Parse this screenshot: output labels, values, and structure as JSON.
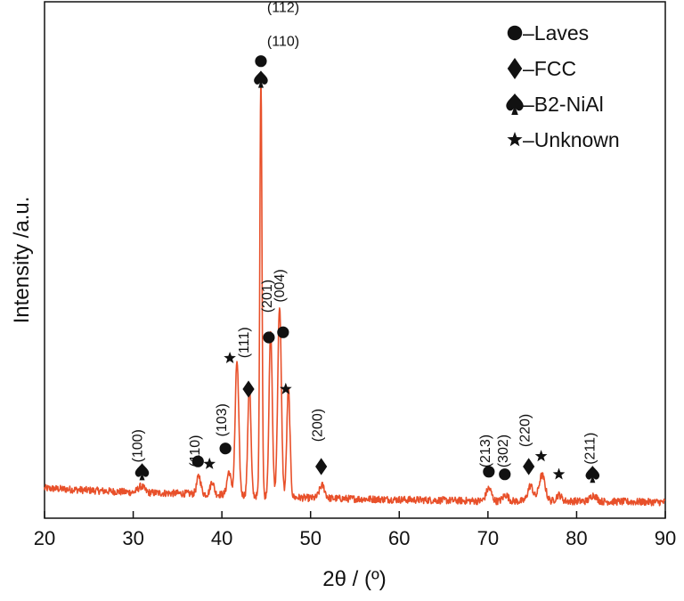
{
  "chart_data": {
    "type": "line",
    "xlabel": "2θ / (º)",
    "ylabel": "Intensity /a.u.",
    "xlim": [
      20,
      90
    ],
    "ylim": [
      0,
      100
    ],
    "xticks": [
      "20",
      "30",
      "40",
      "50",
      "60",
      "70",
      "80",
      "90"
    ],
    "line_color": "#E8502A",
    "background": [
      [
        20,
        5.8
      ],
      [
        30,
        5.0
      ],
      [
        40,
        4.6
      ],
      [
        50,
        3.9
      ],
      [
        60,
        3.6
      ],
      [
        70,
        3.3
      ],
      [
        80,
        3.3
      ],
      [
        90,
        3.1
      ]
    ],
    "peaks": [
      {
        "x": 30.9,
        "y": 1.2,
        "w": 0.35
      },
      {
        "x": 37.4,
        "y": 3.5,
        "w": 0.22
      },
      {
        "x": 38.9,
        "y": 2.5,
        "w": 0.2
      },
      {
        "x": 40.8,
        "y": 4.5,
        "w": 0.22
      },
      {
        "x": 41.7,
        "y": 26.0,
        "w": 0.2
      },
      {
        "x": 43.1,
        "y": 22.0,
        "w": 0.17
      },
      {
        "x": 44.4,
        "y": 82.0,
        "w": 0.12
      },
      {
        "x": 45.5,
        "y": 32.0,
        "w": 0.18
      },
      {
        "x": 46.5,
        "y": 37.0,
        "w": 0.2
      },
      {
        "x": 47.5,
        "y": 21.0,
        "w": 0.18
      },
      {
        "x": 51.3,
        "y": 2.5,
        "w": 0.3
      },
      {
        "x": 70.1,
        "y": 2.5,
        "w": 0.3
      },
      {
        "x": 72.0,
        "y": 1.2,
        "w": 0.3
      },
      {
        "x": 74.8,
        "y": 3.0,
        "w": 0.3
      },
      {
        "x": 76.1,
        "y": 5.0,
        "w": 0.35
      },
      {
        "x": 78.0,
        "y": 1.2,
        "w": 0.3
      },
      {
        "x": 81.9,
        "y": 1.2,
        "w": 0.35
      }
    ],
    "peak_labels": [
      {
        "text": "(100)",
        "x": 31.0,
        "y": 14.0
      },
      {
        "text": "(110)",
        "x": 37.5,
        "y": 13.0
      },
      {
        "text": "(103)",
        "x": 40.5,
        "y": 19.0
      },
      {
        "text": "(111)",
        "x": 43.0,
        "y": 34.0
      },
      {
        "text": "(201)",
        "x": 45.6,
        "y": 43.0
      },
      {
        "text": "(004)",
        "x": 47.0,
        "y": 45.0
      },
      {
        "text": "(112)",
        "x": 45.1,
        "y": 98.0
      },
      {
        "text": "(110)",
        "x": 45.1,
        "y": 91.5
      },
      {
        "text": "(200)",
        "x": 51.3,
        "y": 18.0
      },
      {
        "text": "(213)",
        "x": 70.2,
        "y": 13.0
      },
      {
        "text": "(302)",
        "x": 72.2,
        "y": 13.0
      },
      {
        "text": "(220)",
        "x": 74.7,
        "y": 17.0
      },
      {
        "text": "(211)",
        "x": 82.0,
        "y": 13.5
      }
    ],
    "markers": [
      {
        "symbol": "spade",
        "x": 31.0,
        "y": 9.0
      },
      {
        "symbol": "circle",
        "x": 37.3,
        "y": 11.0
      },
      {
        "symbol": "star",
        "x": 38.6,
        "y": 10.5
      },
      {
        "symbol": "circle",
        "x": 40.4,
        "y": 13.5
      },
      {
        "symbol": "star",
        "x": 40.9,
        "y": 31.0
      },
      {
        "symbol": "diamond",
        "x": 43.0,
        "y": 25.0
      },
      {
        "symbol": "circle",
        "x": 45.3,
        "y": 35.0
      },
      {
        "symbol": "circle",
        "x": 46.9,
        "y": 36.0
      },
      {
        "symbol": "star",
        "x": 47.2,
        "y": 25.0
      },
      {
        "symbol": "spade",
        "x": 44.4,
        "y": 85.0
      },
      {
        "symbol": "circle",
        "x": 44.4,
        "y": 88.5
      },
      {
        "symbol": "diamond",
        "x": 51.2,
        "y": 10.0
      },
      {
        "symbol": "circle",
        "x": 70.1,
        "y": 9.0
      },
      {
        "symbol": "circle",
        "x": 71.9,
        "y": 8.5
      },
      {
        "symbol": "diamond",
        "x": 74.6,
        "y": 10.0
      },
      {
        "symbol": "star",
        "x": 76.0,
        "y": 12.0
      },
      {
        "symbol": "star",
        "x": 78.0,
        "y": 8.5
      },
      {
        "symbol": "spade",
        "x": 81.8,
        "y": 8.5
      }
    ],
    "legend": {
      "placement": "top-right",
      "entries": [
        {
          "symbol": "circle",
          "label": "–Laves"
        },
        {
          "symbol": "diamond",
          "label": "–FCC"
        },
        {
          "symbol": "spade",
          "label": "–B2-NiAl"
        },
        {
          "symbol": "star",
          "label": "–Unknown"
        }
      ]
    }
  }
}
